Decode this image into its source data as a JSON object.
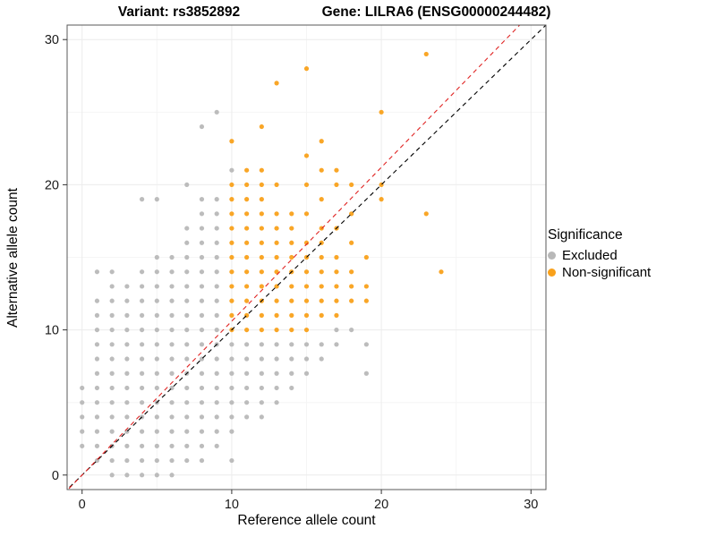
{
  "title": {
    "variant": "Variant: rs3852892",
    "gene": "Gene: LILRA6 (ENSG00000244482)"
  },
  "axes": {
    "x_label": "Reference allele count",
    "y_label": "Alternative allele count",
    "x_ticks": [
      0,
      10,
      20,
      30
    ],
    "y_ticks": [
      0,
      10,
      20,
      30
    ],
    "minor_ticks": [
      5,
      15,
      25
    ]
  },
  "legend": {
    "title": "Significance",
    "items": [
      {
        "label": "Excluded",
        "color": "#b8b8b8"
      },
      {
        "label": "Non-significant",
        "color": "#F9A11B"
      }
    ]
  },
  "colors": {
    "excluded": "#b8b8b8",
    "non_significant": "#F9A11B",
    "identity_line": "#000000",
    "fit_line": "#E02423",
    "grid_major": "#ececec",
    "grid_minor": "#f5f5f5",
    "panel_border": "#595959",
    "tick": "#333333"
  },
  "chart_data": {
    "type": "scatter",
    "title": "Variant: rs3852892 — Gene: LILRA6 (ENSG00000244482)",
    "xlabel": "Reference allele count",
    "ylabel": "Alternative allele count",
    "xlim": [
      -1,
      31
    ],
    "ylim": [
      -1,
      31
    ],
    "grid": "on",
    "legend_position": "right",
    "lines": [
      {
        "name": "identity",
        "color": "#000000",
        "dash": true,
        "slope": 1.0,
        "intercept": 0
      },
      {
        "name": "fit",
        "color": "#E02423",
        "dash": true,
        "slope": 1.06,
        "intercept": 0
      }
    ],
    "series": [
      {
        "name": "Excluded",
        "color": "#b8b8b8",
        "points": [
          [
            0,
            2
          ],
          [
            0,
            3
          ],
          [
            0,
            4
          ],
          [
            0,
            5
          ],
          [
            0,
            6
          ],
          [
            1,
            1
          ],
          [
            1,
            2
          ],
          [
            1,
            3
          ],
          [
            1,
            4
          ],
          [
            1,
            5
          ],
          [
            1,
            6
          ],
          [
            1,
            7
          ],
          [
            1,
            8
          ],
          [
            1,
            9
          ],
          [
            1,
            10
          ],
          [
            1,
            11
          ],
          [
            1,
            12
          ],
          [
            1,
            14
          ],
          [
            2,
            0
          ],
          [
            2,
            1
          ],
          [
            2,
            2
          ],
          [
            2,
            3
          ],
          [
            2,
            4
          ],
          [
            2,
            5
          ],
          [
            2,
            6
          ],
          [
            2,
            7
          ],
          [
            2,
            8
          ],
          [
            2,
            9
          ],
          [
            2,
            10
          ],
          [
            2,
            11
          ],
          [
            2,
            12
          ],
          [
            2,
            13
          ],
          [
            2,
            14
          ],
          [
            3,
            0
          ],
          [
            3,
            1
          ],
          [
            3,
            2
          ],
          [
            3,
            3
          ],
          [
            3,
            4
          ],
          [
            3,
            5
          ],
          [
            3,
            6
          ],
          [
            3,
            7
          ],
          [
            3,
            8
          ],
          [
            3,
            9
          ],
          [
            3,
            10
          ],
          [
            3,
            11
          ],
          [
            3,
            12
          ],
          [
            3,
            13
          ],
          [
            4,
            0
          ],
          [
            4,
            1
          ],
          [
            4,
            2
          ],
          [
            4,
            3
          ],
          [
            4,
            4
          ],
          [
            4,
            5
          ],
          [
            4,
            6
          ],
          [
            4,
            7
          ],
          [
            4,
            8
          ],
          [
            4,
            9
          ],
          [
            4,
            10
          ],
          [
            4,
            11
          ],
          [
            4,
            12
          ],
          [
            4,
            13
          ],
          [
            4,
            14
          ],
          [
            4,
            19
          ],
          [
            5,
            0
          ],
          [
            5,
            1
          ],
          [
            5,
            2
          ],
          [
            5,
            3
          ],
          [
            5,
            4
          ],
          [
            5,
            5
          ],
          [
            5,
            6
          ],
          [
            5,
            7
          ],
          [
            5,
            8
          ],
          [
            5,
            9
          ],
          [
            5,
            10
          ],
          [
            5,
            11
          ],
          [
            5,
            12
          ],
          [
            5,
            13
          ],
          [
            5,
            14
          ],
          [
            5,
            15
          ],
          [
            5,
            19
          ],
          [
            6,
            0
          ],
          [
            6,
            1
          ],
          [
            6,
            2
          ],
          [
            6,
            3
          ],
          [
            6,
            4
          ],
          [
            6,
            5
          ],
          [
            6,
            6
          ],
          [
            6,
            7
          ],
          [
            6,
            8
          ],
          [
            6,
            9
          ],
          [
            6,
            10
          ],
          [
            6,
            11
          ],
          [
            6,
            12
          ],
          [
            6,
            13
          ],
          [
            6,
            14
          ],
          [
            6,
            15
          ],
          [
            7,
            1
          ],
          [
            7,
            2
          ],
          [
            7,
            3
          ],
          [
            7,
            4
          ],
          [
            7,
            5
          ],
          [
            7,
            6
          ],
          [
            7,
            7
          ],
          [
            7,
            8
          ],
          [
            7,
            9
          ],
          [
            7,
            10
          ],
          [
            7,
            11
          ],
          [
            7,
            12
          ],
          [
            7,
            13
          ],
          [
            7,
            14
          ],
          [
            7,
            15
          ],
          [
            7,
            16
          ],
          [
            7,
            17
          ],
          [
            7,
            20
          ],
          [
            8,
            1
          ],
          [
            8,
            2
          ],
          [
            8,
            3
          ],
          [
            8,
            4
          ],
          [
            8,
            5
          ],
          [
            8,
            6
          ],
          [
            8,
            7
          ],
          [
            8,
            8
          ],
          [
            8,
            9
          ],
          [
            8,
            10
          ],
          [
            8,
            11
          ],
          [
            8,
            12
          ],
          [
            8,
            13
          ],
          [
            8,
            14
          ],
          [
            8,
            15
          ],
          [
            8,
            16
          ],
          [
            8,
            17
          ],
          [
            8,
            18
          ],
          [
            8,
            19
          ],
          [
            8,
            24
          ],
          [
            9,
            2
          ],
          [
            9,
            3
          ],
          [
            9,
            4
          ],
          [
            9,
            5
          ],
          [
            9,
            6
          ],
          [
            9,
            7
          ],
          [
            9,
            8
          ],
          [
            9,
            9
          ],
          [
            9,
            10
          ],
          [
            9,
            11
          ],
          [
            9,
            12
          ],
          [
            9,
            13
          ],
          [
            9,
            14
          ],
          [
            9,
            15
          ],
          [
            9,
            16
          ],
          [
            9,
            17
          ],
          [
            9,
            18
          ],
          [
            9,
            19
          ],
          [
            9,
            25
          ],
          [
            10,
            1
          ],
          [
            10,
            3
          ],
          [
            10,
            4
          ],
          [
            10,
            5
          ],
          [
            10,
            6
          ],
          [
            10,
            7
          ],
          [
            10,
            8
          ],
          [
            10,
            9
          ],
          [
            10,
            21
          ],
          [
            11,
            4
          ],
          [
            11,
            5
          ],
          [
            11,
            6
          ],
          [
            11,
            7
          ],
          [
            11,
            8
          ],
          [
            11,
            9
          ],
          [
            12,
            4
          ],
          [
            12,
            5
          ],
          [
            12,
            6
          ],
          [
            12,
            7
          ],
          [
            12,
            8
          ],
          [
            12,
            9
          ],
          [
            13,
            5
          ],
          [
            13,
            6
          ],
          [
            13,
            7
          ],
          [
            13,
            8
          ],
          [
            13,
            9
          ],
          [
            14,
            6
          ],
          [
            14,
            7
          ],
          [
            14,
            8
          ],
          [
            14,
            9
          ],
          [
            15,
            7
          ],
          [
            15,
            8
          ],
          [
            15,
            9
          ],
          [
            16,
            8
          ],
          [
            16,
            9
          ],
          [
            17,
            9
          ],
          [
            17,
            10
          ],
          [
            18,
            10
          ],
          [
            19,
            7
          ],
          [
            19,
            9
          ]
        ]
      },
      {
        "name": "Non-significant",
        "color": "#F9A11B",
        "points": [
          [
            10,
            10
          ],
          [
            10,
            11
          ],
          [
            10,
            12
          ],
          [
            10,
            13
          ],
          [
            10,
            14
          ],
          [
            10,
            15
          ],
          [
            10,
            16
          ],
          [
            10,
            17
          ],
          [
            10,
            18
          ],
          [
            10,
            19
          ],
          [
            10,
            20
          ],
          [
            10,
            23
          ],
          [
            11,
            10
          ],
          [
            11,
            11
          ],
          [
            11,
            12
          ],
          [
            11,
            13
          ],
          [
            11,
            14
          ],
          [
            11,
            15
          ],
          [
            11,
            16
          ],
          [
            11,
            17
          ],
          [
            11,
            18
          ],
          [
            11,
            19
          ],
          [
            11,
            20
          ],
          [
            11,
            21
          ],
          [
            12,
            10
          ],
          [
            12,
            11
          ],
          [
            12,
            12
          ],
          [
            12,
            13
          ],
          [
            12,
            14
          ],
          [
            12,
            15
          ],
          [
            12,
            16
          ],
          [
            12,
            17
          ],
          [
            12,
            18
          ],
          [
            12,
            19
          ],
          [
            12,
            20
          ],
          [
            12,
            21
          ],
          [
            12,
            24
          ],
          [
            13,
            10
          ],
          [
            13,
            11
          ],
          [
            13,
            12
          ],
          [
            13,
            13
          ],
          [
            13,
            14
          ],
          [
            13,
            15
          ],
          [
            13,
            16
          ],
          [
            13,
            17
          ],
          [
            13,
            18
          ],
          [
            13,
            20
          ],
          [
            13,
            27
          ],
          [
            14,
            10
          ],
          [
            14,
            11
          ],
          [
            14,
            12
          ],
          [
            14,
            13
          ],
          [
            14,
            14
          ],
          [
            14,
            15
          ],
          [
            14,
            16
          ],
          [
            14,
            17
          ],
          [
            14,
            18
          ],
          [
            15,
            10
          ],
          [
            15,
            11
          ],
          [
            15,
            12
          ],
          [
            15,
            13
          ],
          [
            15,
            14
          ],
          [
            15,
            15
          ],
          [
            15,
            16
          ],
          [
            15,
            18
          ],
          [
            15,
            20
          ],
          [
            15,
            22
          ],
          [
            15,
            28
          ],
          [
            16,
            11
          ],
          [
            16,
            12
          ],
          [
            16,
            13
          ],
          [
            16,
            14
          ],
          [
            16,
            15
          ],
          [
            16,
            16
          ],
          [
            16,
            17
          ],
          [
            16,
            19
          ],
          [
            16,
            21
          ],
          [
            16,
            23
          ],
          [
            17,
            11
          ],
          [
            17,
            12
          ],
          [
            17,
            13
          ],
          [
            17,
            14
          ],
          [
            17,
            15
          ],
          [
            17,
            17
          ],
          [
            17,
            20
          ],
          [
            17,
            21
          ],
          [
            18,
            12
          ],
          [
            18,
            13
          ],
          [
            18,
            14
          ],
          [
            18,
            16
          ],
          [
            18,
            18
          ],
          [
            18,
            20
          ],
          [
            19,
            12
          ],
          [
            19,
            13
          ],
          [
            19,
            15
          ],
          [
            20,
            19
          ],
          [
            20,
            20
          ],
          [
            20,
            25
          ],
          [
            23,
            18
          ],
          [
            23,
            29
          ],
          [
            24,
            14
          ]
        ]
      }
    ]
  }
}
